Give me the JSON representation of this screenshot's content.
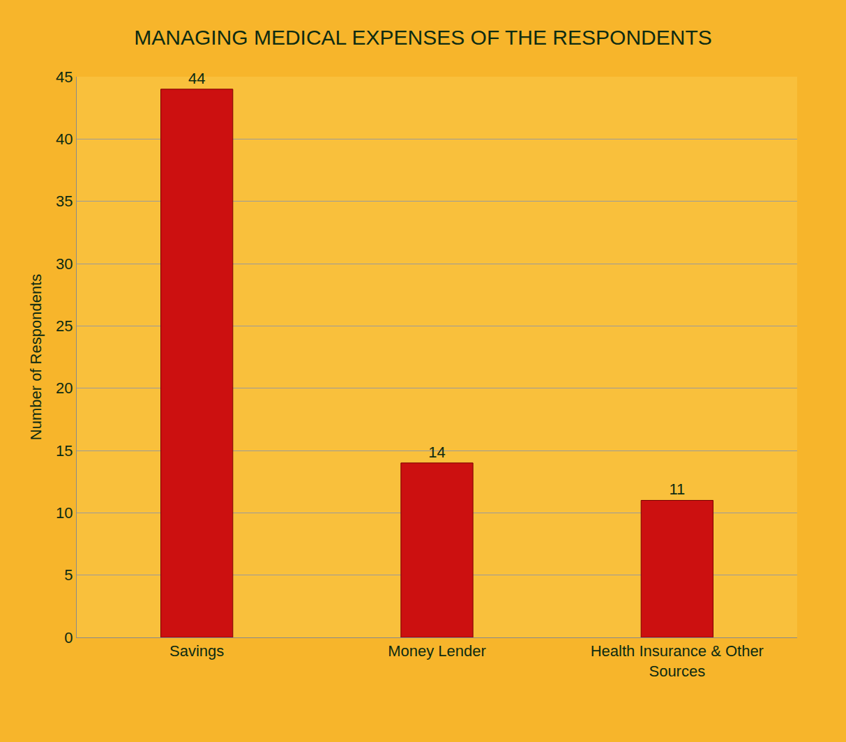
{
  "chart_data": {
    "type": "bar",
    "title": "MANAGING MEDICAL EXPENSES OF THE RESPONDENTS",
    "y_label": "Number of Respondents",
    "categories": [
      "Savings",
      "Money Lender",
      "Health Insurance & Other Sources"
    ],
    "values": [
      44,
      14,
      11
    ],
    "color": "#cc1010",
    "ylim": [
      0,
      45
    ],
    "yticks": [
      0,
      5,
      10,
      15,
      20,
      25,
      30,
      35,
      40,
      45
    ],
    "grid": true,
    "data_labels": true
  }
}
